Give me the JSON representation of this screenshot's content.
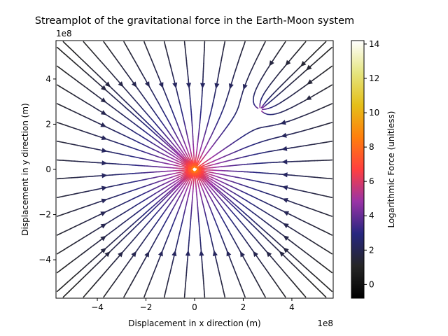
{
  "chart_data": {
    "type": "streamplot",
    "title": "Streamplot of the gravitational force in the Earth-Moon system",
    "xlabel": "Displacement in x direction (m)",
    "ylabel": "Displacement in y direction (m)",
    "x_offset_label": "1e8",
    "y_offset_label": "1e8",
    "xlim": [
      -5.7,
      5.7
    ],
    "ylim": [
      -5.7,
      5.7
    ],
    "x_ticks": [
      -4,
      -2,
      0,
      2,
      4
    ],
    "x_tick_labels": [
      "−4",
      "−2",
      "0",
      "2",
      "4"
    ],
    "y_ticks": [
      -4,
      -2,
      0,
      2,
      4
    ],
    "y_tick_labels": [
      "−4",
      "−2",
      "0",
      "2",
      "4"
    ],
    "grid": false,
    "colorbar": {
      "label": "Logarithmic Force (unitless)",
      "colormap": "CMRmap",
      "range": [
        -0.8,
        14.2
      ],
      "ticks": [
        0,
        2,
        4,
        6,
        8,
        10,
        12,
        14
      ],
      "tick_labels": [
        "0",
        "2",
        "4",
        "6",
        "8",
        "10",
        "12",
        "14"
      ]
    },
    "bodies": [
      {
        "name_hidden": true,
        "x": 0,
        "y": 0
      },
      {
        "name_hidden": true,
        "x": 2.7,
        "y": 2.65
      }
    ]
  }
}
